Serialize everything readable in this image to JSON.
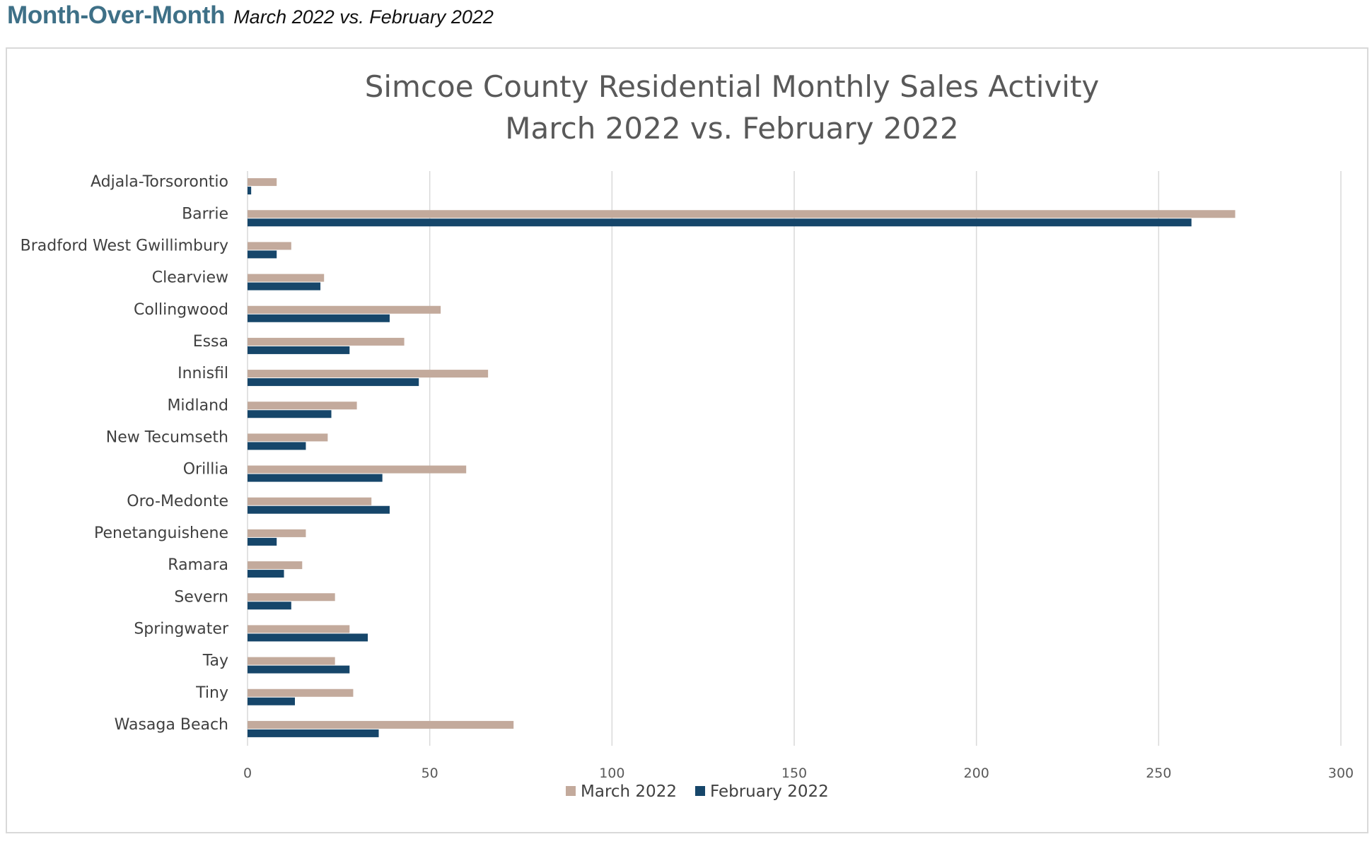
{
  "header": {
    "title": "Month-Over-Month",
    "subtitle": "March 2022 vs. February 2022"
  },
  "chart_data": {
    "type": "bar",
    "orientation": "horizontal",
    "title": "Simcoe County Residential Monthly Sales Activity",
    "subtitle": "March 2022 vs. February 2022",
    "xlabel": "",
    "ylabel": "",
    "xlim": [
      0,
      300
    ],
    "x_ticks": [
      0,
      50,
      100,
      150,
      200,
      250,
      300
    ],
    "grid": "vertical",
    "legend_position": "bottom",
    "categories": [
      "Adjala-Torsorontio",
      "Barrie",
      "Bradford West Gwillimbury",
      "Clearview",
      "Collingwood",
      "Essa",
      "Innisfil",
      "Midland",
      "New Tecumseth",
      "Orillia",
      "Oro-Medonte",
      "Penetanguishene",
      "Ramara",
      "Severn",
      "Springwater",
      "Tay",
      "Tiny",
      "Wasaga Beach"
    ],
    "series": [
      {
        "name": "March 2022",
        "color": "#c3aa9c",
        "values": [
          8,
          271,
          12,
          21,
          53,
          43,
          66,
          30,
          22,
          60,
          34,
          16,
          15,
          24,
          28,
          24,
          29,
          73
        ]
      },
      {
        "name": "February 2022",
        "color": "#16466a",
        "values": [
          1,
          259,
          8,
          20,
          39,
          28,
          47,
          23,
          16,
          37,
          39,
          8,
          10,
          12,
          33,
          28,
          13,
          36
        ]
      }
    ]
  }
}
